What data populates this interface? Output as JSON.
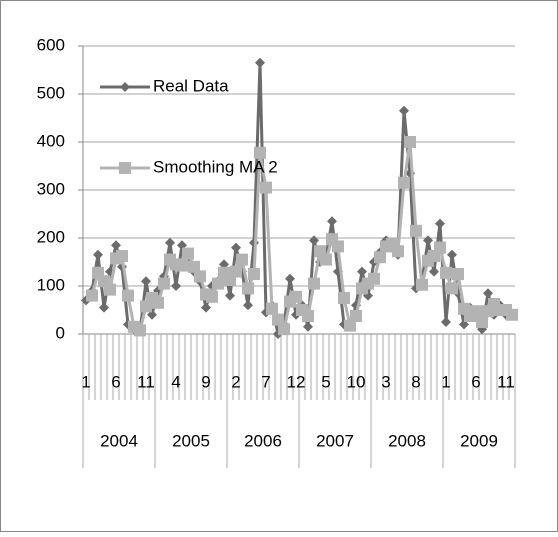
{
  "chart_data": {
    "type": "line",
    "categories": [
      "1",
      null,
      null,
      null,
      null,
      "6",
      null,
      null,
      null,
      null,
      "11",
      null,
      null,
      null,
      null,
      "4",
      null,
      null,
      null,
      null,
      "9",
      null,
      null,
      null,
      null,
      "2",
      null,
      null,
      null,
      null,
      "7",
      null,
      null,
      null,
      null,
      "12",
      null,
      null,
      null,
      null,
      "5",
      null,
      null,
      null,
      null,
      "10",
      null,
      null,
      null,
      null,
      "3",
      null,
      null,
      null,
      null,
      "8",
      null,
      null,
      null,
      null,
      "1",
      null,
      null,
      null,
      null,
      "6",
      null,
      null,
      null,
      null,
      "11",
      null
    ],
    "groups": [
      "2004",
      "2005",
      "2006",
      "2007",
      "2008",
      "2009"
    ],
    "series": [
      {
        "name": "Real Data",
        "color": "#6b6b6b",
        "marker": "diamond",
        "values": [
          70,
          90,
          165,
          55,
          130,
          185,
          140,
          20,
          10,
          5,
          110,
          40,
          90,
          120,
          190,
          100,
          185,
          150,
          130,
          110,
          55,
          100,
          110,
          145,
          80,
          180,
          130,
          60,
          190,
          565,
          45,
          60,
          0,
          20,
          115,
          40,
          60,
          15,
          195,
          150,
          160,
          235,
          130,
          20,
          15,
          60,
          130,
          80,
          150,
          170,
          195,
          180,
          165,
          465,
          335,
          95,
          110,
          195,
          130,
          230,
          25,
          165,
          85,
          20,
          55,
          40,
          10,
          85,
          40,
          60,
          40,
          40
        ]
      },
      {
        "name": "Smoothing MA 2",
        "color": "#b3b3b3",
        "marker": "square",
        "values": [
          null,
          80,
          127.5,
          110,
          92.5,
          157.5,
          162.5,
          80,
          15,
          7.5,
          57.5,
          75,
          65,
          105,
          155,
          145,
          142.5,
          167.5,
          140,
          120,
          82.5,
          77.5,
          105,
          127.5,
          112.5,
          130,
          155,
          95,
          125,
          377.5,
          305,
          52.5,
          30,
          10,
          67.5,
          77.5,
          50,
          37.5,
          105,
          172.5,
          155,
          197.5,
          182.5,
          75,
          17.5,
          37.5,
          95,
          105,
          115,
          160,
          182.5,
          187.5,
          172.5,
          315,
          400,
          215,
          102.5,
          152.5,
          162.5,
          180,
          127.5,
          95,
          125,
          52.5,
          37.5,
          47.5,
          25,
          47.5,
          62.5,
          50,
          50,
          40
        ]
      }
    ],
    "ylim": [
      0,
      600
    ],
    "yticks": [
      0,
      100,
      200,
      300,
      400,
      500,
      600
    ],
    "grid": true,
    "legend": "inside-top-left"
  }
}
